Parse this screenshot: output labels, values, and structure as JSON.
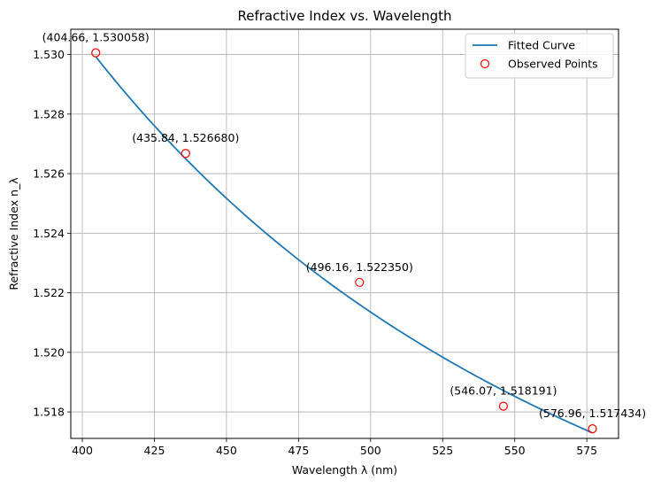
{
  "chart_data": {
    "type": "line",
    "title": "Refractive Index vs. Wavelength",
    "xlabel": "Wavelength λ (nm)",
    "ylabel": "Refractive Index n_λ",
    "xlim": [
      396,
      586
    ],
    "ylim": [
      1.51711,
      1.53085
    ],
    "xticks": [
      400,
      425,
      450,
      475,
      500,
      525,
      550,
      575
    ],
    "yticks": [
      1.518,
      1.52,
      1.522,
      1.524,
      1.526,
      1.528,
      1.53
    ],
    "xtick_labels": [
      "400",
      "425",
      "450",
      "475",
      "500",
      "525",
      "550",
      "575"
    ],
    "ytick_labels": [
      "1.518",
      "1.520",
      "1.522",
      "1.524",
      "1.526",
      "1.528",
      "1.530"
    ],
    "grid": true,
    "legend_position": "top-right",
    "series": [
      {
        "name": "Fitted Curve",
        "kind": "line",
        "color": "#1f77b4",
        "model": "cauchy",
        "A": 1.50506,
        "B": 4072.7,
        "x_range": [
          404.66,
          576.96
        ]
      },
      {
        "name": "Observed Points",
        "kind": "scatter",
        "color": "#ff0000",
        "marker": "open-circle",
        "x": [
          404.66,
          435.84,
          496.16,
          546.07,
          576.96
        ],
        "y": [
          1.530058,
          1.52668,
          1.52235,
          1.518191,
          1.517434
        ]
      }
    ],
    "annotations": [
      "(404.66, 1.530058)",
      "(435.84, 1.526680)",
      "(496.16, 1.522350)",
      "(546.07, 1.518191)",
      "(576.96, 1.517434)"
    ]
  }
}
